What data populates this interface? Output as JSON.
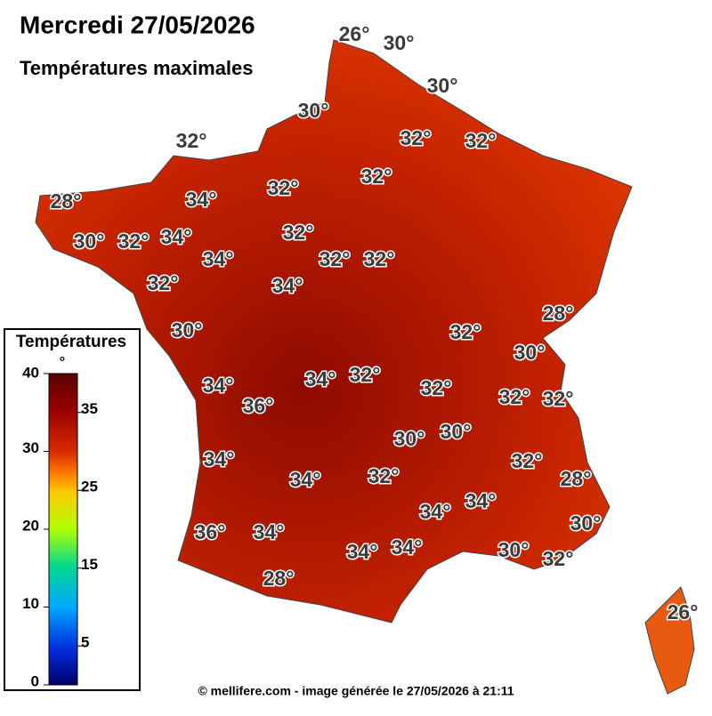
{
  "header": {
    "title": "Mercredi 27/05/2026",
    "subtitle": "Températures maximales"
  },
  "labels": [
    "26°",
    "30°",
    "30°",
    "30°",
    "32°",
    "32°",
    "32°",
    "28°",
    "34°",
    "32°",
    "32°",
    "30°",
    "32°",
    "34°",
    "32°",
    "34°",
    "32°",
    "32°",
    "32°",
    "34°",
    "28°",
    "32°",
    "30°",
    "30°",
    "34°",
    "34°",
    "32°",
    "32°",
    "32°",
    "32°",
    "36°",
    "30°",
    "30°",
    "34°",
    "32°",
    "32°",
    "28°",
    "34°",
    "34°",
    "34°",
    "30°",
    "36°",
    "34°",
    "34°",
    "34°",
    "30°",
    "32°",
    "28°",
    "26°"
  ],
  "legend": {
    "title": "Températures",
    "unit": "°",
    "ticks": [
      0,
      5,
      10,
      15,
      20,
      25,
      30,
      35,
      40
    ]
  },
  "footer": "© mellifere.com - image générée le 27/05/2026 à 21:11"
}
